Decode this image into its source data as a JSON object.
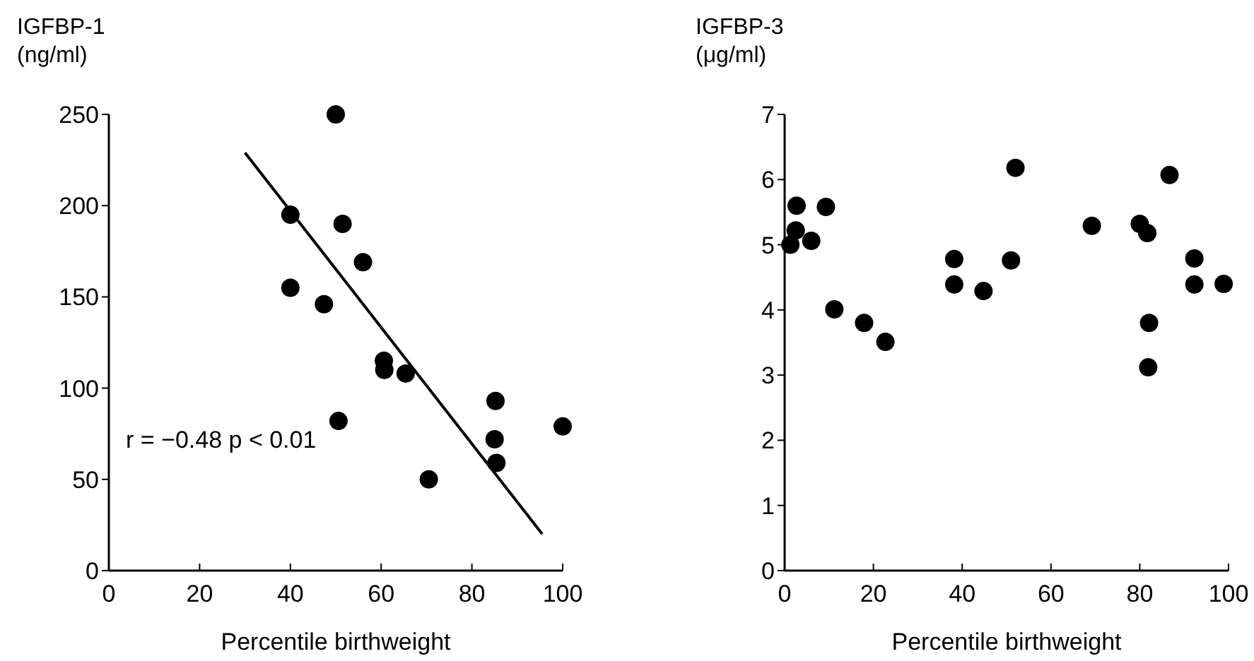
{
  "chart_data": [
    {
      "type": "scatter",
      "ylabel": "IGFBP-1\n(ng/ml)",
      "xlabel": "Percentile birthweight",
      "xlim": [
        0,
        100
      ],
      "xticks": [
        0,
        20,
        40,
        60,
        80,
        100
      ],
      "ylim": [
        0,
        250
      ],
      "yticks": [
        0,
        50,
        100,
        150,
        200,
        250
      ],
      "marker": "circle",
      "annotations": [
        "r = −0.48  p < 0.01"
      ],
      "series": [
        {
          "color": "#000000",
          "x": [
            50,
            40,
            51.5,
            56,
            40,
            47.4,
            60.6,
            60.7,
            65.4,
            50.6,
            85.2,
            85,
            85.4,
            100,
            70.5
          ],
          "values": [
            250,
            195,
            190,
            169,
            155,
            146,
            115,
            110,
            108,
            82,
            93,
            72,
            59,
            79,
            50
          ]
        },
        {
          "type": "line",
          "color": "#000000",
          "marker": "none",
          "line_style": "solid",
          "x": [
            30,
            95.5
          ],
          "values": [
            229,
            20
          ]
        }
      ]
    },
    {
      "type": "scatter",
      "ylabel": "IGFBP-3\n(μg/ml)",
      "xlabel": "Percentile birthweight",
      "xlim": [
        0,
        100
      ],
      "xticks": [
        0,
        20,
        40,
        60,
        80,
        100
      ],
      "ylim": [
        0,
        7
      ],
      "yticks": [
        0,
        1,
        2,
        3,
        4,
        5,
        6,
        7
      ],
      "marker": "circle",
      "series": [
        {
          "color": "#000000",
          "x": [
            1.3,
            2.5,
            2.7,
            6,
            9.3,
            11.2,
            17.9,
            22.7,
            38.2,
            38.2,
            44.8,
            51,
            52,
            69.2,
            80,
            81.7,
            82.1,
            81.9,
            86.7,
            92.3,
            92.3,
            98.9
          ],
          "values": [
            5.0,
            5.22,
            5.6,
            5.06,
            5.58,
            4.01,
            3.8,
            3.51,
            4.78,
            4.39,
            4.29,
            4.76,
            6.18,
            5.29,
            5.32,
            5.18,
            3.8,
            3.12,
            6.07,
            4.79,
            4.39,
            4.4
          ]
        }
      ]
    }
  ]
}
